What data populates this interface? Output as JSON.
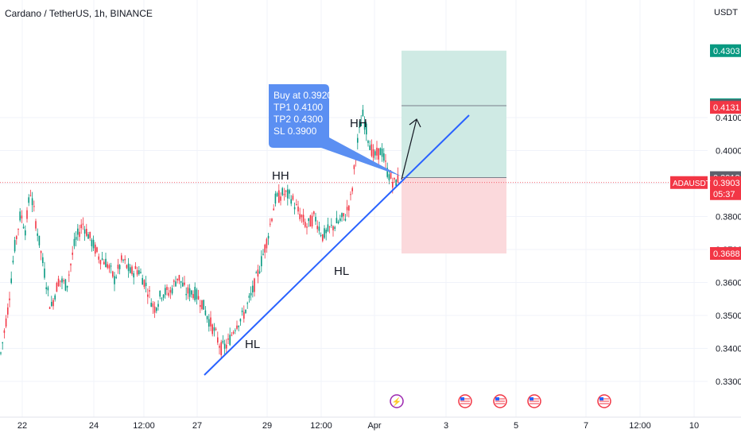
{
  "header": {
    "title": "Cardano / TetherUS, 1h, BINANCE",
    "currency": "USDT"
  },
  "colors": {
    "up": "#089981",
    "down": "#f23645",
    "trend": "#2962ff",
    "target_zone": "#cfeae4",
    "stop_zone": "#fbd9dc",
    "callout": "#5b8ff2",
    "grid": "#f0f3fa",
    "axis_text": "#131722"
  },
  "chart_data": {
    "type": "candlestick",
    "symbol": "ADAUSDT",
    "y_ticks": [
      "0.3300",
      "0.3400",
      "0.3500",
      "0.3600",
      "0.3700",
      "0.3800",
      "0.3900",
      "0.4000",
      "0.4100"
    ],
    "x_ticks": [
      "22",
      "24",
      "12:00",
      "27",
      "29",
      "12:00",
      "Apr",
      "3",
      "5",
      "7",
      "12:00",
      "10"
    ],
    "ylim": [
      0.327,
      0.4375
    ],
    "annotations": {
      "callout": [
        "Buy at 0.3920",
        "TP1 0.4100",
        "TP2 0.4300",
        "SL 0.3900"
      ],
      "swing_labels": [
        "HH",
        "HH",
        "HL",
        "HL"
      ]
    },
    "price_labels": [
      {
        "value": "0.4303",
        "role": "target"
      },
      {
        "value": "0.4139",
        "role": "up"
      },
      {
        "value": "0.4136",
        "role": "neutral"
      },
      {
        "value": "0.4131",
        "role": "down"
      },
      {
        "value": "0.3918",
        "role": "neutral"
      },
      {
        "value": "0.3903",
        "role": "last",
        "countdown": "05:37"
      },
      {
        "value": "0.3688",
        "role": "stop"
      }
    ],
    "last_symbol_tag": "ADAUSDT",
    "last_price": 0.3903,
    "events": [
      {
        "type": "earnings",
        "glyph": "⚡"
      },
      {
        "type": "economic",
        "flag": "us"
      },
      {
        "type": "economic",
        "flag": "us"
      },
      {
        "type": "economic",
        "flag": "us"
      },
      {
        "type": "economic",
        "flag": "us"
      }
    ]
  }
}
